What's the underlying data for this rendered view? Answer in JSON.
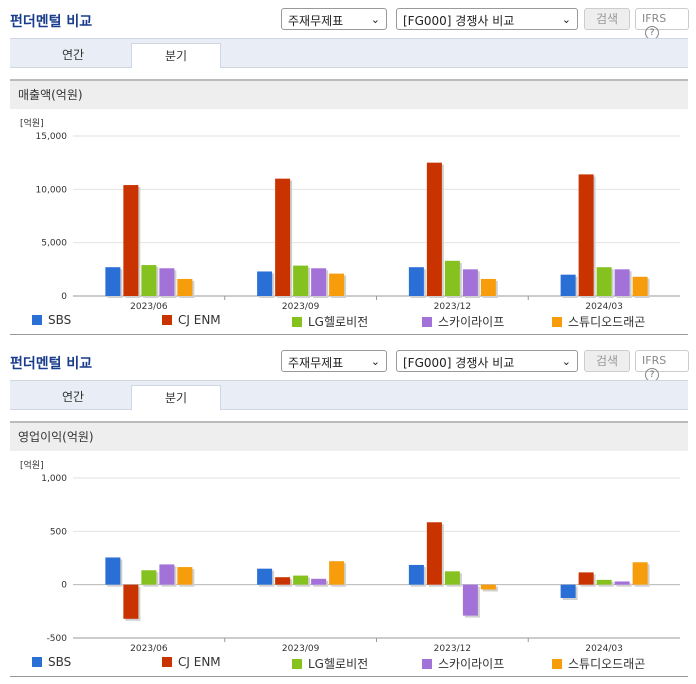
{
  "header": {
    "title": "펀더멘털 비교",
    "select1": "주재무제표",
    "select2": "[FG000] 경쟁사 비교",
    "search_label": "검색",
    "ifrs_label": "IFRS",
    "help_glyph": "?"
  },
  "tabs": [
    "연간",
    "분기"
  ],
  "colors": {
    "SBS": "#2a6fd6",
    "CJ ENM": "#c93300",
    "LG헬로비전": "#86c21f",
    "스카이라이프": "#a372d9",
    "스튜디오드래곤": "#f79d0c"
  },
  "chart_data": [
    {
      "type": "bar",
      "title": "매출액(억원)",
      "unit_label": "[억원]",
      "categories": [
        "2023/06",
        "2023/09",
        "2023/12",
        "2024/03"
      ],
      "ylim": [
        0,
        15000
      ],
      "yticks": [
        0,
        5000,
        10000,
        15000
      ],
      "ytick_labels": [
        "0",
        "5,000",
        "10,000",
        "15,000"
      ],
      "legend": "bottom",
      "series": [
        {
          "name": "SBS",
          "values": [
            2700,
            2300,
            2700,
            2000
          ]
        },
        {
          "name": "CJ ENM",
          "values": [
            10400,
            11000,
            12500,
            11400
          ]
        },
        {
          "name": "LG헬로비전",
          "values": [
            2900,
            2850,
            3300,
            2700
          ]
        },
        {
          "name": "스카이라이프",
          "values": [
            2600,
            2600,
            2500,
            2500
          ]
        },
        {
          "name": "스튜디오드래곤",
          "values": [
            1600,
            2100,
            1600,
            1800
          ]
        }
      ]
    },
    {
      "type": "bar",
      "title": "영업이익(억원)",
      "unit_label": "[억원]",
      "categories": [
        "2023/06",
        "2023/09",
        "2023/12",
        "2024/03"
      ],
      "ylim": [
        -500,
        1000
      ],
      "yticks": [
        -500,
        0,
        500,
        1000
      ],
      "ytick_labels": [
        "-500",
        "0",
        "500",
        "1,000"
      ],
      "legend": "bottom",
      "series": [
        {
          "name": "SBS",
          "values": [
            255,
            150,
            185,
            -125
          ]
        },
        {
          "name": "CJ ENM",
          "values": [
            -320,
            70,
            585,
            115
          ]
        },
        {
          "name": "LG헬로비전",
          "values": [
            135,
            85,
            125,
            45
          ]
        },
        {
          "name": "스카이라이프",
          "values": [
            190,
            55,
            -290,
            30
          ]
        },
        {
          "name": "스튜디오드래곤",
          "values": [
            165,
            220,
            -45,
            210
          ]
        }
      ]
    }
  ]
}
